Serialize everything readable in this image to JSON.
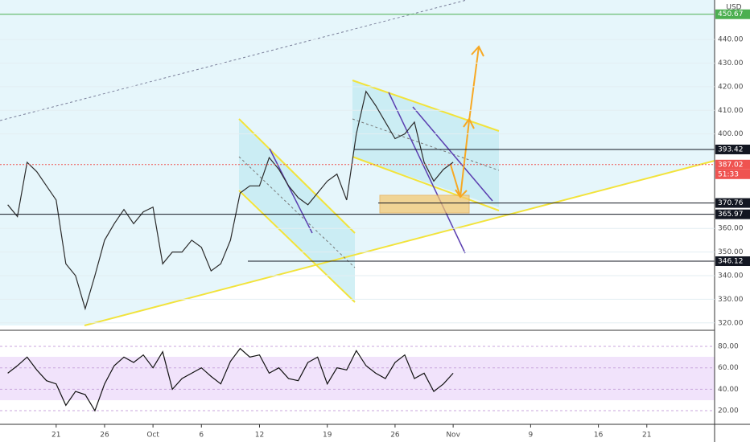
{
  "chart_data": [
    {
      "type": "line",
      "currency": "USD",
      "color": "#2b2b2b",
      "x": [
        -5,
        -4,
        -3,
        -2,
        -1,
        0,
        1,
        2,
        3,
        4,
        5,
        6,
        7,
        8,
        9,
        10,
        11,
        12,
        13,
        14,
        15,
        16,
        17,
        18,
        19,
        20,
        21,
        22,
        23,
        24,
        25,
        26,
        27,
        28,
        29,
        30,
        31,
        32,
        33,
        34,
        35,
        36,
        37,
        38,
        39,
        40,
        41
      ],
      "values": [
        370,
        365,
        388,
        384,
        378,
        372,
        345,
        340,
        326,
        340,
        355,
        362,
        368,
        362,
        367,
        369,
        345,
        350,
        350,
        355,
        352,
        342,
        345,
        355,
        375,
        378,
        378,
        390,
        385,
        378,
        373,
        370,
        375,
        380,
        383,
        372,
        400,
        418,
        412,
        405,
        398,
        400,
        405,
        388,
        380,
        385,
        388
      ],
      "xlim": [
        -5.8,
        68
      ],
      "ylim": [
        317.2,
        456.7
      ],
      "xticks": [
        {
          "value": 0,
          "label": "21"
        },
        {
          "value": 5,
          "label": "26"
        },
        {
          "value": 10,
          "label": "Oct"
        },
        {
          "value": 15,
          "label": "6"
        },
        {
          "value": 21,
          "label": "12"
        },
        {
          "value": 28,
          "label": "19"
        },
        {
          "value": 35,
          "label": "26"
        },
        {
          "value": 41,
          "label": "Nov"
        },
        {
          "value": 49,
          "label": "9"
        },
        {
          "value": 56,
          "label": "16"
        },
        {
          "value": 61,
          "label": "21"
        }
      ],
      "yticks": [
        {
          "value": 320,
          "label": "320.00"
        },
        {
          "value": 330,
          "label": "330.00"
        },
        {
          "value": 340,
          "label": "340.00"
        },
        {
          "value": 350,
          "label": "350.00"
        },
        {
          "value": 360,
          "label": "360.00"
        },
        {
          "value": 400,
          "label": "400.00"
        },
        {
          "value": 410,
          "label": "410.00"
        },
        {
          "value": 420,
          "label": "420.00"
        },
        {
          "value": 430,
          "label": "430.00"
        },
        {
          "value": 440,
          "label": "440.00"
        }
      ],
      "levels": [
        {
          "value": 450.67,
          "color": "#4caf50"
        },
        {
          "value": 393.42,
          "color": "#131722"
        },
        {
          "value": 387.02,
          "color": "#ef5350"
        },
        {
          "value": 370.76,
          "color": "#131722"
        },
        {
          "value": 365.97,
          "color": "#131722"
        },
        {
          "value": 346.12,
          "color": "#131722"
        }
      ],
      "countdown": "51:33"
    },
    {
      "type": "line",
      "color": "#111111",
      "x": [
        -5,
        -4,
        -3,
        -2,
        -1,
        0,
        1,
        2,
        3,
        4,
        5,
        6,
        7,
        8,
        9,
        10,
        11,
        12,
        13,
        14,
        15,
        16,
        17,
        18,
        19,
        20,
        21,
        22,
        23,
        24,
        25,
        26,
        27,
        28,
        29,
        30,
        31,
        32,
        33,
        34,
        35,
        36,
        37,
        38,
        39,
        40,
        41
      ],
      "values": [
        55,
        62,
        70,
        58,
        48,
        45,
        25,
        38,
        35,
        20,
        45,
        62,
        70,
        65,
        72,
        60,
        75,
        40,
        50,
        55,
        60,
        52,
        45,
        66,
        78,
        70,
        72,
        55,
        60,
        50,
        48,
        65,
        70,
        45,
        60,
        58,
        76,
        62,
        55,
        50,
        65,
        72,
        50,
        55,
        38,
        45,
        55
      ],
      "xlim": [
        -5.8,
        68
      ],
      "ylim": [
        7.3,
        92
      ],
      "yticks": [
        {
          "value": 20,
          "label": "20.00"
        },
        {
          "value": 40,
          "label": "40.00"
        },
        {
          "value": 60,
          "label": "60.00"
        },
        {
          "value": 80,
          "label": "80.00"
        }
      ]
    }
  ]
}
